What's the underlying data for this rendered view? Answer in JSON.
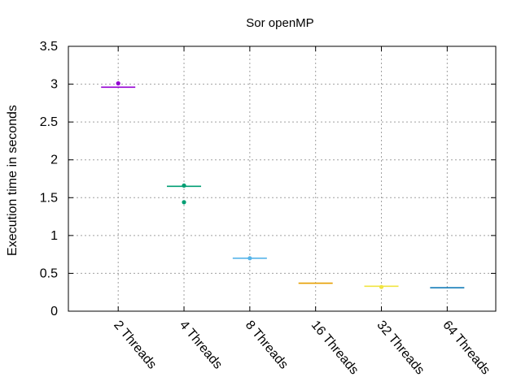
{
  "chart_data": {
    "type": "scatter",
    "title": "Sor openMP",
    "xlabel": "",
    "ylabel": "Execution time in seconds",
    "ylim": [
      0,
      3.5
    ],
    "yticks": [
      "0",
      "0.5",
      "1",
      "1.5",
      "2",
      "2.5",
      "3",
      "3.5"
    ],
    "grid": true,
    "categories": [
      "2 Threads",
      "4 Threads",
      "8 Threads",
      "16 Threads",
      "32 Threads",
      "64 Threads"
    ],
    "series": [
      {
        "color": "#9400d3",
        "median": 2.96,
        "points": [
          3.01
        ]
      },
      {
        "color": "#009e73",
        "median": 1.65,
        "points": [
          1.66,
          1.44
        ]
      },
      {
        "color": "#56b4e9",
        "median": 0.7,
        "points": [
          0.7
        ]
      },
      {
        "color": "#e69f00",
        "median": 0.37,
        "points": []
      },
      {
        "color": "#f0e442",
        "median": 0.33,
        "points": [
          0.32
        ]
      },
      {
        "color": "#0072b2",
        "median": 0.31,
        "points": []
      }
    ]
  }
}
